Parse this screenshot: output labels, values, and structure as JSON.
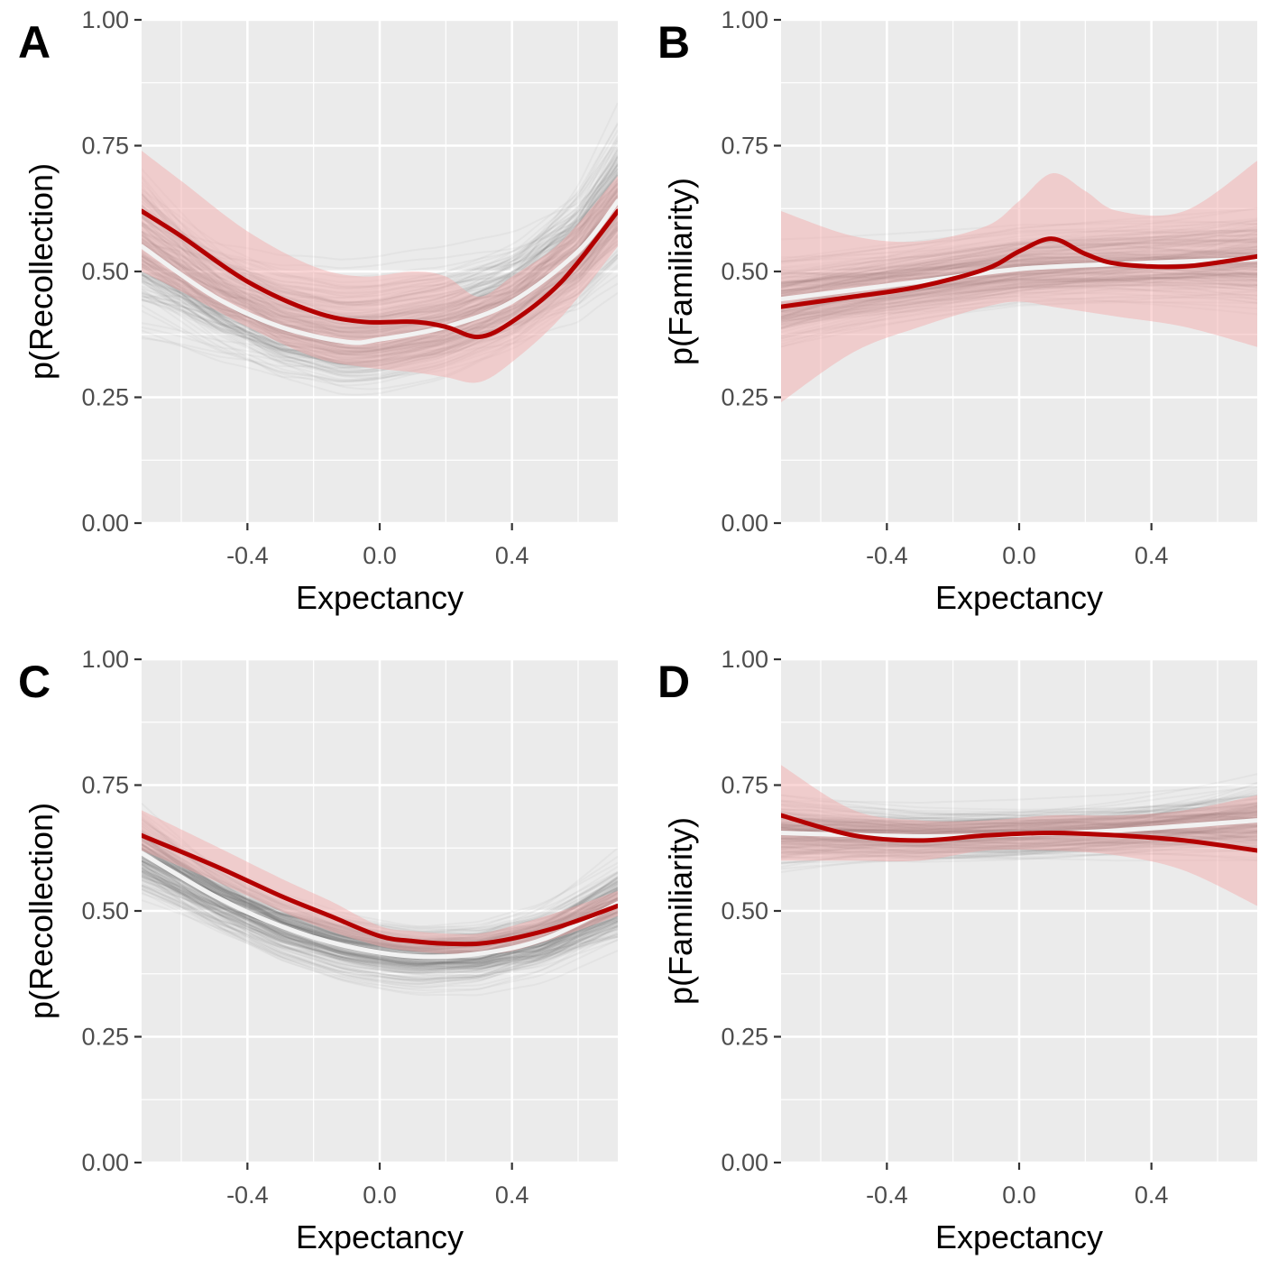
{
  "figure": {
    "colors": {
      "panel_bg": "#ebebeb",
      "grid": "#ffffff",
      "sample_lines": "#3a3a3a",
      "observed_line": "#b30000",
      "observed_band": "#f4a6a6",
      "fitted_line": "#f2f2f2"
    }
  },
  "chart_data": [
    {
      "panel": "A",
      "type": "line",
      "xlabel": "Expectancy",
      "ylabel": "p(Recollection)",
      "xlim": [
        -0.72,
        0.72
      ],
      "ylim": [
        0,
        1
      ],
      "xticks": [
        "-0.4",
        "0.0",
        "0.4"
      ],
      "yticks": [
        "0.00",
        "0.25",
        "0.50",
        "0.75",
        "1.00"
      ],
      "grid": true,
      "series": [
        {
          "role": "observed",
          "x": [
            -0.72,
            -0.6,
            -0.4,
            -0.2,
            -0.05,
            0.1,
            0.2,
            0.3,
            0.4,
            0.55,
            0.72
          ],
          "y": [
            0.62,
            0.57,
            0.48,
            0.42,
            0.4,
            0.4,
            0.39,
            0.37,
            0.4,
            0.48,
            0.62
          ],
          "lower": [
            0.5,
            0.46,
            0.39,
            0.33,
            0.31,
            0.3,
            0.29,
            0.28,
            0.32,
            0.41,
            0.55
          ],
          "upper": [
            0.74,
            0.68,
            0.58,
            0.51,
            0.49,
            0.5,
            0.49,
            0.45,
            0.49,
            0.56,
            0.69
          ]
        },
        {
          "role": "fitted",
          "x": [
            -0.72,
            -0.5,
            -0.3,
            -0.1,
            0.0,
            0.2,
            0.4,
            0.6,
            0.72
          ],
          "y": [
            0.55,
            0.45,
            0.39,
            0.36,
            0.365,
            0.39,
            0.44,
            0.54,
            0.64
          ]
        }
      ],
      "samples": {
        "count": 240,
        "quad": [
          0.37,
          0.52
        ],
        "spread": 0.09,
        "curv_spread": 0.25,
        "slope_spread": 0.05
      }
    },
    {
      "panel": "B",
      "type": "line",
      "xlabel": "Expectancy",
      "ylabel": "p(Familiarity)",
      "xlim": [
        -0.72,
        0.72
      ],
      "ylim": [
        0,
        1
      ],
      "xticks": [
        "-0.4",
        "0.0",
        "0.4"
      ],
      "yticks": [
        "0.00",
        "0.25",
        "0.50",
        "0.75",
        "1.00"
      ],
      "grid": true,
      "series": [
        {
          "role": "observed",
          "x": [
            -0.72,
            -0.5,
            -0.3,
            -0.1,
            0.0,
            0.1,
            0.2,
            0.3,
            0.5,
            0.72
          ],
          "y": [
            0.43,
            0.45,
            0.47,
            0.505,
            0.54,
            0.565,
            0.535,
            0.515,
            0.51,
            0.53
          ],
          "lower": [
            0.24,
            0.34,
            0.39,
            0.43,
            0.44,
            0.43,
            0.42,
            0.41,
            0.39,
            0.35
          ],
          "upper": [
            0.62,
            0.57,
            0.56,
            0.59,
            0.64,
            0.695,
            0.66,
            0.62,
            0.62,
            0.72
          ]
        },
        {
          "role": "fitted",
          "x": [
            -0.72,
            -0.3,
            0.0,
            0.3,
            0.72
          ],
          "y": [
            0.445,
            0.48,
            0.505,
            0.515,
            0.525
          ]
        }
      ],
      "samples": {
        "count": 240,
        "lin": [
          0.5,
          0.06
        ],
        "spread": 0.06,
        "slope_spread": 0.06,
        "curv_spread": 0.08
      }
    },
    {
      "panel": "C",
      "type": "line",
      "xlabel": "Expectancy",
      "ylabel": "p(Recollection)",
      "xlim": [
        -0.72,
        0.72
      ],
      "ylim": [
        0,
        1
      ],
      "xticks": [
        "-0.4",
        "0.0",
        "0.4"
      ],
      "yticks": [
        "0.00",
        "0.25",
        "0.50",
        "0.75",
        "1.00"
      ],
      "grid": true,
      "series": [
        {
          "role": "observed",
          "x": [
            -0.72,
            -0.5,
            -0.3,
            -0.15,
            0.0,
            0.1,
            0.2,
            0.3,
            0.4,
            0.55,
            0.72
          ],
          "y": [
            0.65,
            0.59,
            0.53,
            0.49,
            0.45,
            0.44,
            0.435,
            0.435,
            0.445,
            0.47,
            0.51
          ],
          "lower": [
            0.62,
            0.56,
            0.5,
            0.46,
            0.43,
            0.42,
            0.415,
            0.415,
            0.42,
            0.45,
            0.49
          ],
          "upper": [
            0.7,
            0.63,
            0.565,
            0.52,
            0.47,
            0.46,
            0.455,
            0.455,
            0.47,
            0.5,
            0.54
          ]
        },
        {
          "role": "fitted",
          "x": [
            -0.72,
            -0.5,
            -0.3,
            -0.1,
            0.1,
            0.3,
            0.5,
            0.72
          ],
          "y": [
            0.615,
            0.53,
            0.47,
            0.43,
            0.41,
            0.415,
            0.445,
            0.515
          ]
        }
      ],
      "samples": {
        "count": 240,
        "quad": [
          0.41,
          0.11,
          0.6
        ],
        "center": 0.1,
        "spread": 0.05,
        "curv_spread": 0.12,
        "slope_spread": 0.04
      }
    },
    {
      "panel": "D",
      "type": "line",
      "xlabel": "Expectancy",
      "ylabel": "p(Familiarity)",
      "xlim": [
        -0.72,
        0.72
      ],
      "ylim": [
        0,
        1
      ],
      "xticks": [
        "-0.4",
        "0.0",
        "0.4"
      ],
      "yticks": [
        "0.00",
        "0.25",
        "0.50",
        "0.75",
        "1.00"
      ],
      "grid": true,
      "series": [
        {
          "role": "observed",
          "x": [
            -0.72,
            -0.5,
            -0.3,
            -0.1,
            0.1,
            0.3,
            0.5,
            0.72
          ],
          "y": [
            0.69,
            0.65,
            0.64,
            0.65,
            0.655,
            0.65,
            0.64,
            0.62
          ],
          "lower": [
            0.6,
            0.6,
            0.6,
            0.62,
            0.62,
            0.61,
            0.58,
            0.51
          ],
          "upper": [
            0.79,
            0.7,
            0.68,
            0.68,
            0.69,
            0.69,
            0.7,
            0.73
          ]
        },
        {
          "role": "fitted",
          "x": [
            -0.72,
            -0.3,
            0.0,
            0.3,
            0.72
          ],
          "y": [
            0.655,
            0.648,
            0.652,
            0.66,
            0.68
          ]
        }
      ],
      "samples": {
        "count": 240,
        "lin": [
          0.655,
          0.02
        ],
        "spread": 0.045,
        "slope_spread": 0.05,
        "curv_spread": 0.08
      }
    }
  ]
}
